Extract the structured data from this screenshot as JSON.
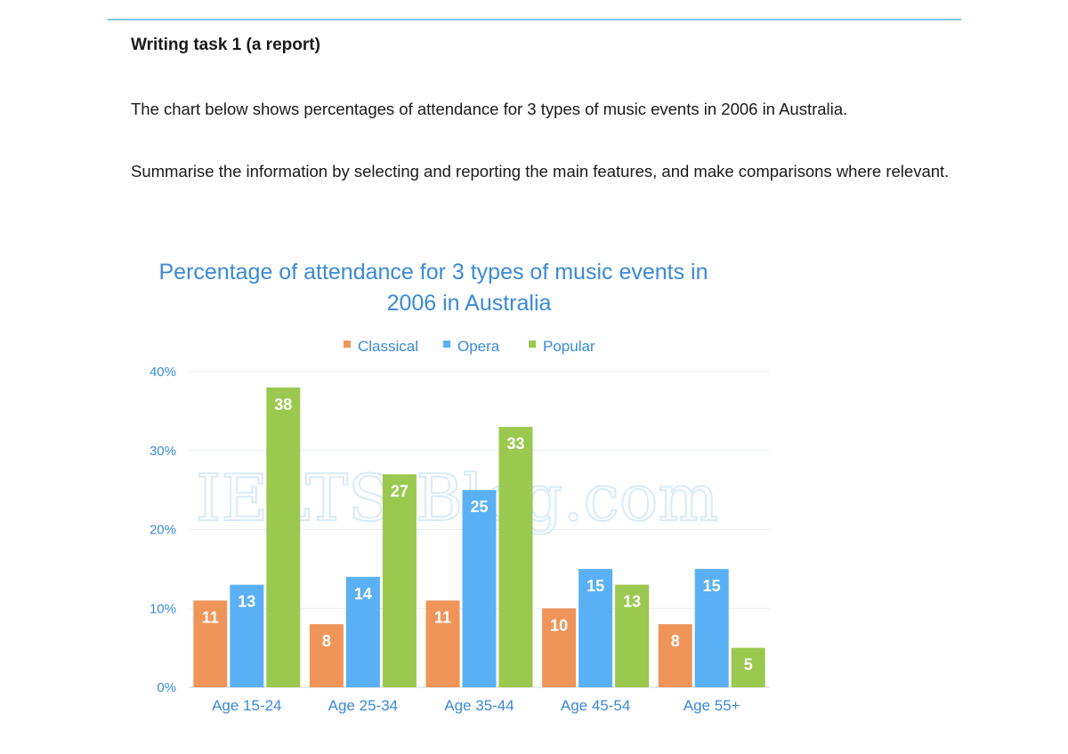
{
  "task": {
    "heading": "Writing task 1 (a report)",
    "intro": "The chart below shows percentages of attendance for 3 types of music events in 2006 in Australia.",
    "instruction": "Summarise the information by selecting and reporting the main features, and make comparisons where relevant."
  },
  "chart_data": {
    "type": "bar",
    "title_line1": "Percentage of attendance for 3 types of music events in",
    "title_line2": "2006 in Australia",
    "watermark": "IELTS-Blog.com",
    "categories": [
      "Age 15-24",
      "Age 25-34",
      "Age 35-44",
      "Age 45-54",
      "Age 55+"
    ],
    "series": [
      {
        "name": "Classical",
        "color": "#f0955a",
        "values": [
          11,
          8,
          11,
          10,
          8
        ]
      },
      {
        "name": "Opera",
        "color": "#5ab0f5",
        "values": [
          13,
          14,
          25,
          15,
          15
        ]
      },
      {
        "name": "Popular",
        "color": "#9bc84f",
        "values": [
          38,
          27,
          33,
          13,
          5
        ]
      }
    ],
    "yticks": [
      "0%",
      "10%",
      "20%",
      "30%",
      "40%"
    ],
    "ylim": [
      0,
      40
    ],
    "grid": true,
    "legend_position": "top-center"
  }
}
